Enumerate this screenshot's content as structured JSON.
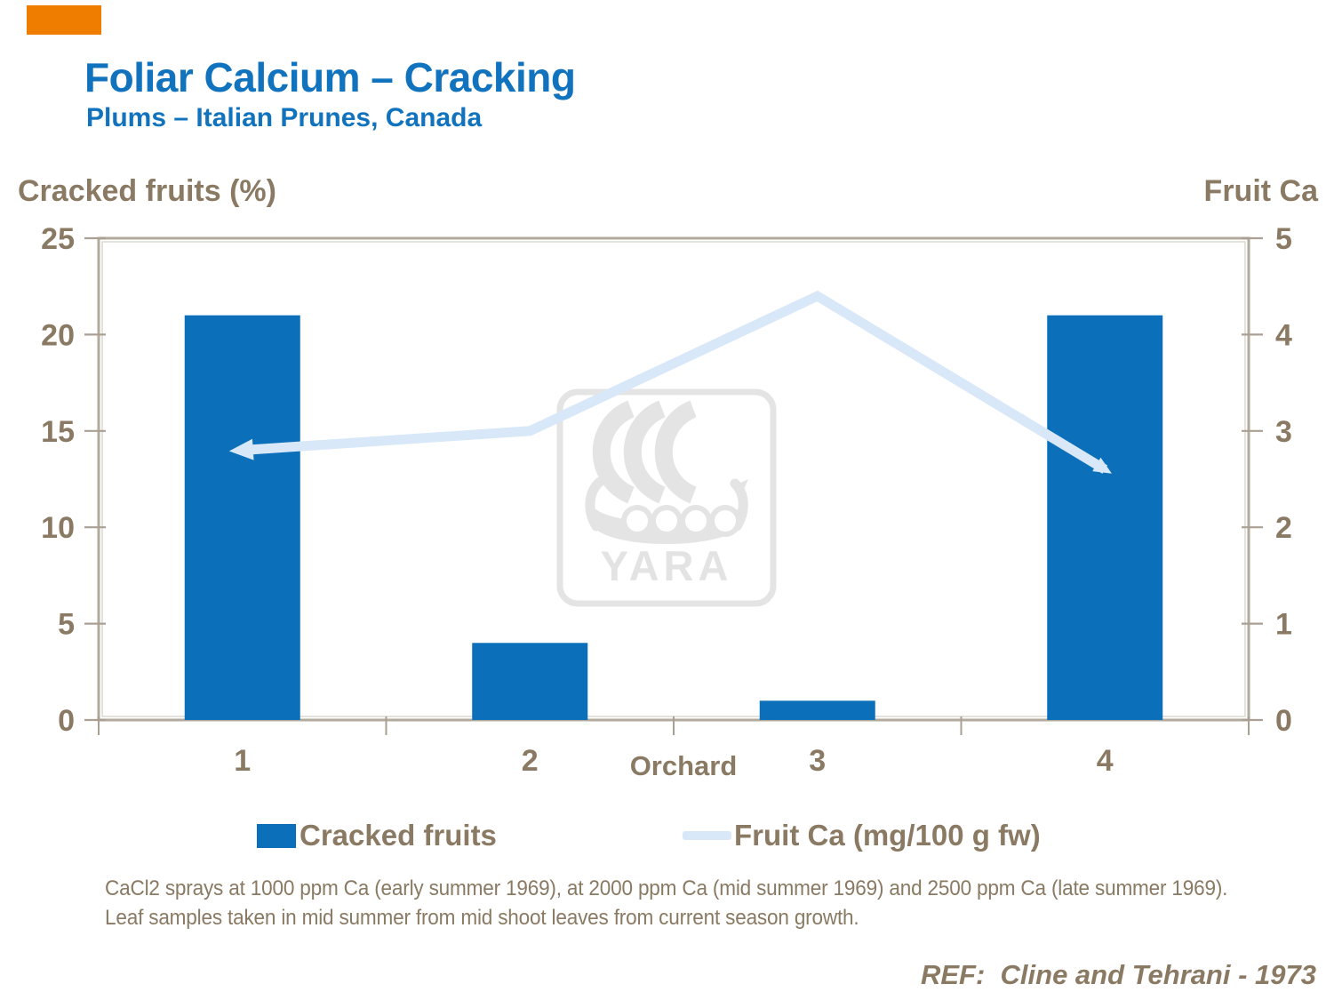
{
  "slide": {
    "title": "Foliar Calcium – Cracking",
    "subtitle": "Plums – Italian Prunes, Canada",
    "title_color": "#1173BE",
    "text_color": "#8A7A63",
    "accent_bar_color": "#EF7D00",
    "watermark_text": "YARA",
    "footnote": "CaCl2 sprays at 1000 ppm Ca (early summer 1969), at 2000 ppm Ca (mid summer 1969) and 2500 ppm Ca (late summer 1969). Leaf samples taken in mid summer from mid shoot leaves from current season growth.",
    "reference": "REF:  Cline and Tehrani - 1973"
  },
  "chart_data": {
    "type": "combo-bar-line",
    "categories": [
      "1",
      "2",
      "3",
      "4"
    ],
    "x_axis_title": "Orchard",
    "left_axis": {
      "label": "Cracked fruits (%)",
      "ticks": [
        0,
        5,
        10,
        15,
        20,
        25
      ],
      "range": [
        0,
        25
      ]
    },
    "right_axis": {
      "label": "Fruit Ca",
      "ticks": [
        0,
        1,
        2,
        3,
        4,
        5
      ],
      "range": [
        0,
        5
      ]
    },
    "series": [
      {
        "name": "Cracked fruits",
        "type": "bar",
        "axis": "left",
        "color": "#0B70B9",
        "values": [
          21,
          4,
          1,
          21
        ]
      },
      {
        "name": "Fruit Ca (mg/100 g fw)",
        "type": "line",
        "axis": "right",
        "color": "#D8E8F8",
        "values": [
          2.8,
          3.0,
          4.4,
          2.6
        ]
      }
    ],
    "legend_position": "bottom",
    "grid": false,
    "frame_color": "#B2AA9D"
  }
}
